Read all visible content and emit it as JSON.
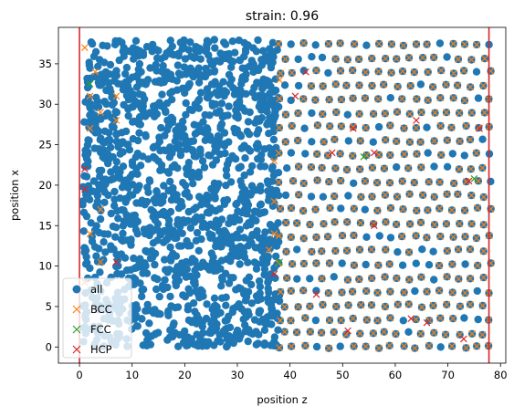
{
  "chart_data": {
    "type": "scatter",
    "title": "strain: 0.96",
    "xlabel": "position z",
    "ylabel": "position x",
    "xlim": [
      -4,
      81
    ],
    "ylim": [
      -2,
      39.5
    ],
    "xticks": [
      0,
      10,
      20,
      30,
      40,
      50,
      60,
      70,
      80
    ],
    "yticks": [
      0,
      5,
      10,
      15,
      20,
      25,
      30,
      35
    ],
    "grid": false,
    "legend_position": "lower-left",
    "vertical_lines": [
      {
        "x": 0,
        "color": "#d62728"
      },
      {
        "x": 77.8,
        "color": "#d62728"
      }
    ],
    "series": [
      {
        "name": "all",
        "marker": "circle",
        "color": "#1f77b4",
        "description_regions": [
          {
            "x_range": [
              0,
              38
            ],
            "y_range": [
              0,
              38
            ],
            "pattern": "dense amorphous"
          },
          {
            "x_range": [
              38,
              78
            ],
            "y_range": [
              0,
              37.5
            ],
            "pattern": "ordered lattice"
          }
        ]
      },
      {
        "name": "BCC",
        "marker": "x",
        "color": "#ff7f0e",
        "description_regions": [
          {
            "x_range": [
              38,
              78
            ],
            "y_range": [
              0,
              37.5
            ],
            "pattern": "ordered lattice"
          }
        ],
        "points": [
          [
            1,
            37
          ],
          [
            3,
            34
          ],
          [
            2,
            31
          ],
          [
            4,
            29
          ],
          [
            7,
            31
          ],
          [
            7,
            28
          ],
          [
            2,
            27
          ],
          [
            4,
            17
          ],
          [
            2,
            14
          ],
          [
            4,
            10.5
          ],
          [
            1,
            8
          ],
          [
            37,
            23
          ],
          [
            37,
            18
          ],
          [
            37,
            14
          ],
          [
            36,
            12
          ],
          [
            38,
            33
          ]
        ]
      },
      {
        "name": "FCC",
        "marker": "x",
        "color": "#2ca02c",
        "points": [
          [
            2,
            32.5
          ],
          [
            54,
            23.5
          ],
          [
            75,
            20.8
          ],
          [
            38,
            10.5
          ]
        ]
      },
      {
        "name": "HCP",
        "marker": "x",
        "color": "#d62728",
        "points": [
          [
            1,
            19.5
          ],
          [
            1,
            22
          ],
          [
            7,
            10.5
          ],
          [
            41,
            31
          ],
          [
            43,
            34
          ],
          [
            52,
            27
          ],
          [
            48,
            24
          ],
          [
            56,
            24
          ],
          [
            45,
            6.5
          ],
          [
            63,
            3.5
          ],
          [
            66,
            3
          ],
          [
            73,
            1
          ],
          [
            74,
            20.5
          ],
          [
            76,
            27
          ],
          [
            37,
            9
          ],
          [
            51,
            2
          ],
          [
            64,
            28
          ],
          [
            56,
            15
          ]
        ]
      }
    ]
  }
}
